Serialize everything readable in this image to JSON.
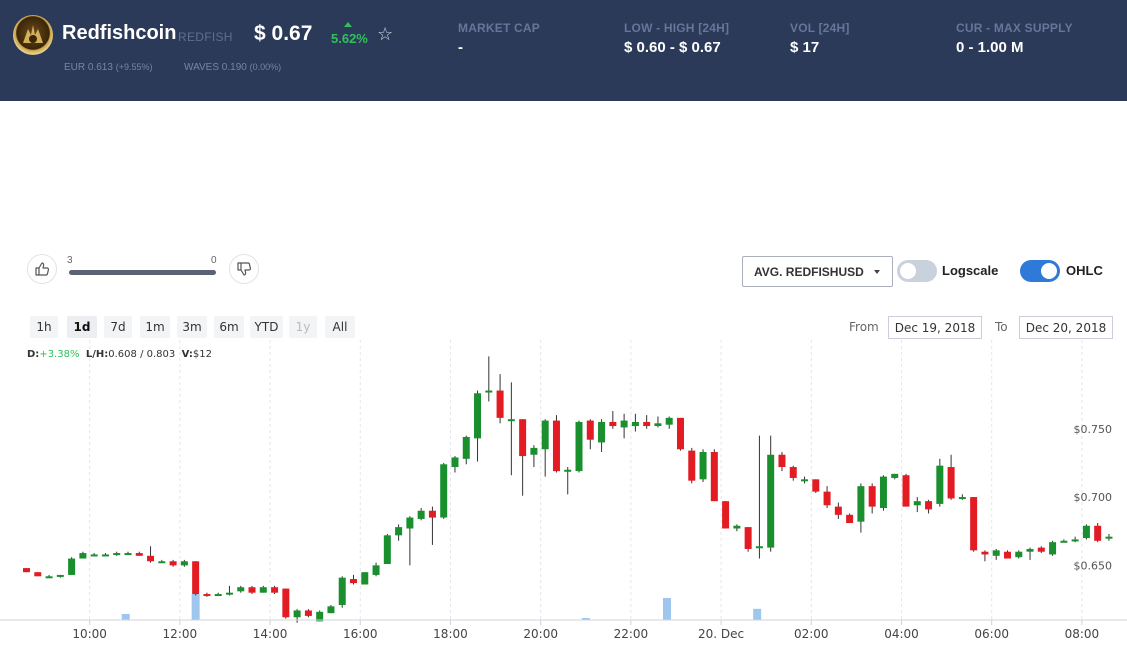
{
  "header": {
    "name": "Redfishcoin",
    "symbol": "REDFISH",
    "price": "$ 0.67",
    "change": "5.62%",
    "eur_label": "EUR",
    "eur_value": "0.613",
    "eur_change": "(+9.55%)",
    "waves_label": "WAVES",
    "waves_value": "0.190",
    "waves_change": "(0.00%)",
    "stats": [
      {
        "label": "MARKET CAP",
        "value": "-"
      },
      {
        "label": "LOW - HIGH [24H]",
        "value": "$ 0.60 - $ 0.67"
      },
      {
        "label": "VOL [24H]",
        "value": "$ 17"
      },
      {
        "label": "CUR - MAX SUPPLY",
        "value": "0 - 1.00 M"
      }
    ]
  },
  "votes": {
    "up": "3",
    "down": "0",
    "up_share": 1.0
  },
  "controls": {
    "pair": "AVG. REDFISHUSD",
    "logscale_label": "Logscale",
    "logscale_on": false,
    "ohlc_label": "OHLC",
    "ohlc_on": true,
    "ranges": [
      "1h",
      "1d",
      "7d",
      "1m",
      "3m",
      "6m",
      "YTD",
      "1y",
      "All"
    ],
    "active_range": "1d",
    "disabled_range": "1y",
    "from_label": "From",
    "from_date": "Dec 19, 2018",
    "to_label": "To",
    "to_date": "Dec 20, 2018"
  },
  "ohlc": {
    "d_label": "D:",
    "d_value": "+3.38%",
    "lh_label": "L/H:",
    "low": "0.608",
    "sep": "/",
    "high": "0.803",
    "v_label": "V:",
    "volume": "$12"
  },
  "colors": {
    "up": "#1a8f2d",
    "down": "#e31b23",
    "volume": "#9ec6ee",
    "header_bg": "#2b3a59",
    "toggle_on": "#2f7ad8",
    "toggle_off": "#c9d1dc"
  },
  "chart_data": {
    "type": "candlestick",
    "x_ticks": [
      "10:00",
      "12:00",
      "14:00",
      "16:00",
      "18:00",
      "20:00",
      "22:00",
      "20. Dec",
      "02:00",
      "04:00",
      "06:00",
      "08:00"
    ],
    "x_tick_hours": [
      10,
      12,
      14,
      16,
      18,
      20,
      22,
      24,
      26,
      28,
      30,
      32
    ],
    "y_ticks": [
      "$0.650",
      "$0.700",
      "$0.750"
    ],
    "y_tick_values": [
      0.65,
      0.7,
      0.75
    ],
    "x_range": [
      8.5,
      33.0
    ],
    "y_range": [
      0.61,
      0.815
    ],
    "candles": [
      {
        "t": 8.6,
        "o": 0.648,
        "h": 0.648,
        "l": 0.645,
        "c": 0.645
      },
      {
        "t": 8.85,
        "o": 0.645,
        "h": 0.645,
        "l": 0.642,
        "c": 0.642
      },
      {
        "t": 9.1,
        "o": 0.642,
        "h": 0.643,
        "l": 0.641,
        "c": 0.642
      },
      {
        "t": 9.35,
        "o": 0.642,
        "h": 0.643,
        "l": 0.641,
        "c": 0.643
      },
      {
        "t": 9.6,
        "o": 0.643,
        "h": 0.656,
        "l": 0.643,
        "c": 0.655
      },
      {
        "t": 9.85,
        "o": 0.655,
        "h": 0.66,
        "l": 0.655,
        "c": 0.659
      },
      {
        "t": 10.1,
        "o": 0.658,
        "h": 0.659,
        "l": 0.657,
        "c": 0.658
      },
      {
        "t": 10.35,
        "o": 0.658,
        "h": 0.659,
        "l": 0.657,
        "c": 0.658
      },
      {
        "t": 10.6,
        "o": 0.658,
        "h": 0.66,
        "l": 0.657,
        "c": 0.659
      },
      {
        "t": 10.85,
        "o": 0.658,
        "h": 0.66,
        "l": 0.658,
        "c": 0.659
      },
      {
        "t": 11.1,
        "o": 0.659,
        "h": 0.66,
        "l": 0.657,
        "c": 0.657
      },
      {
        "t": 11.35,
        "o": 0.657,
        "h": 0.664,
        "l": 0.652,
        "c": 0.653
      },
      {
        "t": 11.6,
        "o": 0.653,
        "h": 0.654,
        "l": 0.652,
        "c": 0.653
      },
      {
        "t": 11.85,
        "o": 0.653,
        "h": 0.654,
        "l": 0.649,
        "c": 0.65
      },
      {
        "t": 12.1,
        "o": 0.65,
        "h": 0.654,
        "l": 0.649,
        "c": 0.653
      },
      {
        "t": 12.35,
        "o": 0.653,
        "h": 0.653,
        "l": 0.628,
        "c": 0.629
      },
      {
        "t": 12.6,
        "o": 0.629,
        "h": 0.63,
        "l": 0.627,
        "c": 0.628
      },
      {
        "t": 12.85,
        "o": 0.629,
        "h": 0.63,
        "l": 0.628,
        "c": 0.629
      },
      {
        "t": 13.1,
        "o": 0.629,
        "h": 0.635,
        "l": 0.628,
        "c": 0.63
      },
      {
        "t": 13.35,
        "o": 0.631,
        "h": 0.635,
        "l": 0.63,
        "c": 0.634
      },
      {
        "t": 13.6,
        "o": 0.634,
        "h": 0.635,
        "l": 0.629,
        "c": 0.63
      },
      {
        "t": 13.85,
        "o": 0.63,
        "h": 0.635,
        "l": 0.63,
        "c": 0.634
      },
      {
        "t": 14.1,
        "o": 0.634,
        "h": 0.635,
        "l": 0.629,
        "c": 0.63
      },
      {
        "t": 14.35,
        "o": 0.633,
        "h": 0.633,
        "l": 0.611,
        "c": 0.612
      },
      {
        "t": 14.6,
        "o": 0.612,
        "h": 0.618,
        "l": 0.608,
        "c": 0.617
      },
      {
        "t": 14.85,
        "o": 0.617,
        "h": 0.618,
        "l": 0.612,
        "c": 0.613
      },
      {
        "t": 15.1,
        "o": 0.609,
        "h": 0.617,
        "l": 0.609,
        "c": 0.616
      },
      {
        "t": 15.35,
        "o": 0.615,
        "h": 0.621,
        "l": 0.615,
        "c": 0.62
      },
      {
        "t": 15.6,
        "o": 0.621,
        "h": 0.642,
        "l": 0.619,
        "c": 0.641
      },
      {
        "t": 15.85,
        "o": 0.64,
        "h": 0.643,
        "l": 0.636,
        "c": 0.637
      },
      {
        "t": 16.1,
        "o": 0.636,
        "h": 0.645,
        "l": 0.636,
        "c": 0.645
      },
      {
        "t": 16.35,
        "o": 0.643,
        "h": 0.652,
        "l": 0.642,
        "c": 0.65
      },
      {
        "t": 16.6,
        "o": 0.651,
        "h": 0.673,
        "l": 0.651,
        "c": 0.672
      },
      {
        "t": 16.85,
        "o": 0.672,
        "h": 0.68,
        "l": 0.668,
        "c": 0.678
      },
      {
        "t": 17.1,
        "o": 0.677,
        "h": 0.686,
        "l": 0.65,
        "c": 0.685
      },
      {
        "t": 17.35,
        "o": 0.684,
        "h": 0.692,
        "l": 0.683,
        "c": 0.69
      },
      {
        "t": 17.6,
        "o": 0.69,
        "h": 0.693,
        "l": 0.665,
        "c": 0.685
      },
      {
        "t": 17.85,
        "o": 0.685,
        "h": 0.725,
        "l": 0.684,
        "c": 0.724
      },
      {
        "t": 18.1,
        "o": 0.722,
        "h": 0.73,
        "l": 0.718,
        "c": 0.729
      },
      {
        "t": 18.35,
        "o": 0.728,
        "h": 0.745,
        "l": 0.724,
        "c": 0.744
      },
      {
        "t": 18.6,
        "o": 0.743,
        "h": 0.778,
        "l": 0.726,
        "c": 0.776
      },
      {
        "t": 18.85,
        "o": 0.778,
        "h": 0.803,
        "l": 0.77,
        "c": 0.778
      },
      {
        "t": 19.1,
        "o": 0.778,
        "h": 0.79,
        "l": 0.754,
        "c": 0.758
      },
      {
        "t": 19.35,
        "o": 0.757,
        "h": 0.784,
        "l": 0.716,
        "c": 0.757
      },
      {
        "t": 19.6,
        "o": 0.757,
        "h": 0.757,
        "l": 0.701,
        "c": 0.73
      },
      {
        "t": 19.85,
        "o": 0.731,
        "h": 0.738,
        "l": 0.722,
        "c": 0.736
      },
      {
        "t": 20.1,
        "o": 0.735,
        "h": 0.757,
        "l": 0.715,
        "c": 0.756
      },
      {
        "t": 20.35,
        "o": 0.756,
        "h": 0.76,
        "l": 0.718,
        "c": 0.719
      },
      {
        "t": 20.6,
        "o": 0.719,
        "h": 0.722,
        "l": 0.702,
        "c": 0.72
      },
      {
        "t": 20.85,
        "o": 0.719,
        "h": 0.756,
        "l": 0.718,
        "c": 0.755
      },
      {
        "t": 21.1,
        "o": 0.756,
        "h": 0.757,
        "l": 0.735,
        "c": 0.742
      },
      {
        "t": 21.35,
        "o": 0.74,
        "h": 0.757,
        "l": 0.733,
        "c": 0.755
      },
      {
        "t": 21.6,
        "o": 0.755,
        "h": 0.763,
        "l": 0.75,
        "c": 0.752
      },
      {
        "t": 21.85,
        "o": 0.751,
        "h": 0.761,
        "l": 0.743,
        "c": 0.756
      },
      {
        "t": 22.1,
        "o": 0.752,
        "h": 0.761,
        "l": 0.748,
        "c": 0.755
      },
      {
        "t": 22.35,
        "o": 0.755,
        "h": 0.76,
        "l": 0.75,
        "c": 0.752
      },
      {
        "t": 22.6,
        "o": 0.752,
        "h": 0.759,
        "l": 0.751,
        "c": 0.754
      },
      {
        "t": 22.85,
        "o": 0.753,
        "h": 0.759,
        "l": 0.75,
        "c": 0.758
      },
      {
        "t": 23.1,
        "o": 0.758,
        "h": 0.758,
        "l": 0.734,
        "c": 0.735
      },
      {
        "t": 23.35,
        "o": 0.734,
        "h": 0.736,
        "l": 0.71,
        "c": 0.712
      },
      {
        "t": 23.6,
        "o": 0.713,
        "h": 0.735,
        "l": 0.711,
        "c": 0.733
      },
      {
        "t": 23.85,
        "o": 0.733,
        "h": 0.735,
        "l": 0.697,
        "c": 0.697
      },
      {
        "t": 24.1,
        "o": 0.697,
        "h": 0.697,
        "l": 0.677,
        "c": 0.677
      },
      {
        "t": 24.35,
        "o": 0.677,
        "h": 0.68,
        "l": 0.675,
        "c": 0.679
      },
      {
        "t": 24.6,
        "o": 0.678,
        "h": 0.678,
        "l": 0.66,
        "c": 0.662
      },
      {
        "t": 24.85,
        "o": 0.663,
        "h": 0.745,
        "l": 0.655,
        "c": 0.664
      },
      {
        "t": 25.1,
        "o": 0.663,
        "h": 0.745,
        "l": 0.66,
        "c": 0.731
      },
      {
        "t": 25.35,
        "o": 0.731,
        "h": 0.733,
        "l": 0.719,
        "c": 0.722
      },
      {
        "t": 25.6,
        "o": 0.722,
        "h": 0.723,
        "l": 0.712,
        "c": 0.714
      },
      {
        "t": 25.85,
        "o": 0.713,
        "h": 0.715,
        "l": 0.71,
        "c": 0.713
      },
      {
        "t": 26.1,
        "o": 0.713,
        "h": 0.713,
        "l": 0.703,
        "c": 0.704
      },
      {
        "t": 26.35,
        "o": 0.704,
        "h": 0.708,
        "l": 0.692,
        "c": 0.694
      },
      {
        "t": 26.6,
        "o": 0.693,
        "h": 0.696,
        "l": 0.684,
        "c": 0.687
      },
      {
        "t": 26.85,
        "o": 0.687,
        "h": 0.688,
        "l": 0.681,
        "c": 0.681
      },
      {
        "t": 27.1,
        "o": 0.682,
        "h": 0.71,
        "l": 0.674,
        "c": 0.708
      },
      {
        "t": 27.35,
        "o": 0.708,
        "h": 0.71,
        "l": 0.688,
        "c": 0.693
      },
      {
        "t": 27.6,
        "o": 0.692,
        "h": 0.716,
        "l": 0.69,
        "c": 0.715
      },
      {
        "t": 27.85,
        "o": 0.714,
        "h": 0.717,
        "l": 0.713,
        "c": 0.717
      },
      {
        "t": 28.1,
        "o": 0.716,
        "h": 0.717,
        "l": 0.693,
        "c": 0.693
      },
      {
        "t": 28.35,
        "o": 0.694,
        "h": 0.7,
        "l": 0.689,
        "c": 0.697
      },
      {
        "t": 28.6,
        "o": 0.697,
        "h": 0.698,
        "l": 0.688,
        "c": 0.691
      },
      {
        "t": 28.85,
        "o": 0.695,
        "h": 0.728,
        "l": 0.693,
        "c": 0.723
      },
      {
        "t": 29.1,
        "o": 0.722,
        "h": 0.731,
        "l": 0.698,
        "c": 0.699
      },
      {
        "t": 29.35,
        "o": 0.7,
        "h": 0.702,
        "l": 0.698,
        "c": 0.7
      },
      {
        "t": 29.6,
        "o": 0.7,
        "h": 0.7,
        "l": 0.66,
        "c": 0.661
      },
      {
        "t": 29.85,
        "o": 0.66,
        "h": 0.661,
        "l": 0.653,
        "c": 0.658
      },
      {
        "t": 30.1,
        "o": 0.657,
        "h": 0.662,
        "l": 0.654,
        "c": 0.661
      },
      {
        "t": 30.35,
        "o": 0.66,
        "h": 0.661,
        "l": 0.655,
        "c": 0.655
      },
      {
        "t": 30.6,
        "o": 0.656,
        "h": 0.661,
        "l": 0.655,
        "c": 0.66
      },
      {
        "t": 30.85,
        "o": 0.66,
        "h": 0.663,
        "l": 0.654,
        "c": 0.662
      },
      {
        "t": 31.1,
        "o": 0.663,
        "h": 0.664,
        "l": 0.659,
        "c": 0.66
      },
      {
        "t": 31.35,
        "o": 0.658,
        "h": 0.668,
        "l": 0.657,
        "c": 0.667
      },
      {
        "t": 31.6,
        "o": 0.668,
        "h": 0.669,
        "l": 0.667,
        "c": 0.668
      },
      {
        "t": 31.85,
        "o": 0.668,
        "h": 0.671,
        "l": 0.667,
        "c": 0.669
      },
      {
        "t": 32.1,
        "o": 0.67,
        "h": 0.68,
        "l": 0.669,
        "c": 0.679
      },
      {
        "t": 32.35,
        "o": 0.679,
        "h": 0.681,
        "l": 0.667,
        "c": 0.668
      },
      {
        "t": 32.6,
        "o": 0.67,
        "h": 0.673,
        "l": 0.668,
        "c": 0.671
      }
    ],
    "volume_bars": [
      {
        "t": 10.8,
        "v": 0.15
      },
      {
        "t": 12.35,
        "v": 0.65
      },
      {
        "t": 21.0,
        "v": 0.05
      },
      {
        "t": 22.8,
        "v": 0.55
      },
      {
        "t": 24.8,
        "v": 0.28
      }
    ]
  }
}
